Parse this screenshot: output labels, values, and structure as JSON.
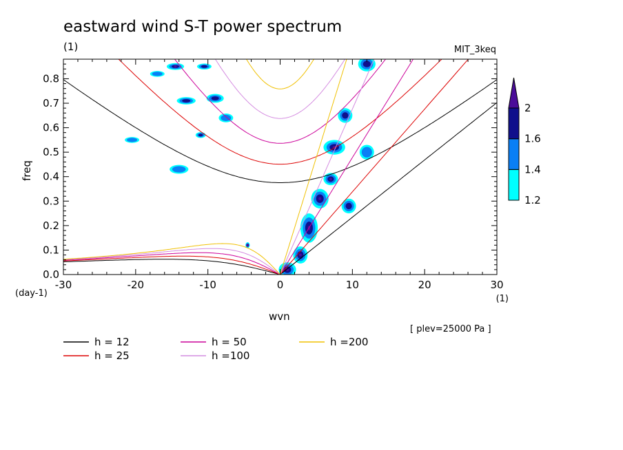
{
  "chart_data": {
    "type": "heatmap",
    "title": "eastward wind S-T power spectrum",
    "units_top_left": "(1)",
    "model_name": "MIT_3keq",
    "xlabel": "wvn",
    "ylabel": "freq",
    "x_units": "(1)",
    "y_units": "(day-1)",
    "xlim": [
      -30,
      30
    ],
    "ylim": [
      0,
      0.88
    ],
    "x_ticks": [
      -30,
      -20,
      -10,
      0,
      10,
      20,
      30
    ],
    "x_tick_labels": [
      "-30",
      "-20",
      "-10",
      "0",
      "10",
      "20",
      "30"
    ],
    "y_ticks": [
      0,
      0.1,
      0.2,
      0.3,
      0.4,
      0.5,
      0.6,
      0.7,
      0.8
    ],
    "y_tick_labels": [
      "0.0",
      "0.1",
      "0.2",
      "0.3",
      "0.4",
      "0.5",
      "0.6",
      "0.7",
      "0.8"
    ],
    "note": "[ plev=25000 Pa ]",
    "colorbar": {
      "levels": [
        1.2,
        1.4,
        1.6,
        2
      ],
      "level_labels": [
        "1.2",
        "1.4",
        "1.6",
        "2"
      ],
      "colors": [
        "#00ffff",
        "#0a7ff5",
        "#10108c",
        "#4b0d99"
      ]
    },
    "dispersion_curves": [
      {
        "label": "h = 12",
        "h": 12,
        "color": "#000000"
      },
      {
        "label": "h = 25",
        "h": 25,
        "color": "#dd0000"
      },
      {
        "label": "h = 50",
        "h": 50,
        "color": "#cc0099"
      },
      {
        "label": "h =100",
        "h": 100,
        "color": "#d48be0"
      },
      {
        "label": "h =200",
        "h": 200,
        "color": "#f0c000"
      }
    ],
    "contour_blobs": [
      {
        "k": -14.5,
        "f": 0.85,
        "rk": 1.2,
        "rf": 0.014,
        "level": 3
      },
      {
        "k": -10.5,
        "f": 0.85,
        "rk": 1.0,
        "rf": 0.012,
        "level": 2
      },
      {
        "k": -17,
        "f": 0.82,
        "rk": 1.0,
        "rf": 0.012,
        "level": 1
      },
      {
        "k": -13,
        "f": 0.71,
        "rk": 1.3,
        "rf": 0.015,
        "level": 2
      },
      {
        "k": -9,
        "f": 0.72,
        "rk": 1.2,
        "rf": 0.018,
        "level": 2
      },
      {
        "k": -7.5,
        "f": 0.64,
        "rk": 1.0,
        "rf": 0.018,
        "level": 1
      },
      {
        "k": -11,
        "f": 0.57,
        "rk": 0.7,
        "rf": 0.012,
        "level": 2
      },
      {
        "k": -20.5,
        "f": 0.55,
        "rk": 1.0,
        "rf": 0.012,
        "level": 1
      },
      {
        "k": -14,
        "f": 0.43,
        "rk": 1.3,
        "rf": 0.018,
        "level": 1
      },
      {
        "k": -4.5,
        "f": 0.12,
        "rk": 0.3,
        "rf": 0.012,
        "level": 3
      },
      {
        "k": 1,
        "f": 0.02,
        "rk": 1.2,
        "rf": 0.03,
        "level": 3
      },
      {
        "k": 2.8,
        "f": 0.08,
        "rk": 1.0,
        "rf": 0.035,
        "level": 3
      },
      {
        "k": 4,
        "f": 0.19,
        "rk": 1.2,
        "rf": 0.06,
        "level": 3
      },
      {
        "k": 5.5,
        "f": 0.31,
        "rk": 1.2,
        "rf": 0.04,
        "level": 3
      },
      {
        "k": 7,
        "f": 0.39,
        "rk": 1.0,
        "rf": 0.025,
        "level": 3
      },
      {
        "k": 7.5,
        "f": 0.52,
        "rk": 1.5,
        "rf": 0.03,
        "level": 3
      },
      {
        "k": 9,
        "f": 0.65,
        "rk": 1.0,
        "rf": 0.03,
        "level": 2
      },
      {
        "k": 12,
        "f": 0.86,
        "rk": 1.2,
        "rf": 0.03,
        "level": 2
      },
      {
        "k": 9.5,
        "f": 0.28,
        "rk": 1.0,
        "rf": 0.03,
        "level": 2
      },
      {
        "k": 12,
        "f": 0.5,
        "rk": 1.0,
        "rf": 0.03,
        "level": 1
      }
    ]
  },
  "legend_items": [
    {
      "label": "h = 12",
      "color": "#000000"
    },
    {
      "label": "h = 25",
      "color": "#dd0000"
    },
    {
      "label": "h = 50",
      "color": "#cc0099"
    },
    {
      "label": "h =100",
      "color": "#d48be0"
    },
    {
      "label": "h =200",
      "color": "#f0c000"
    }
  ]
}
